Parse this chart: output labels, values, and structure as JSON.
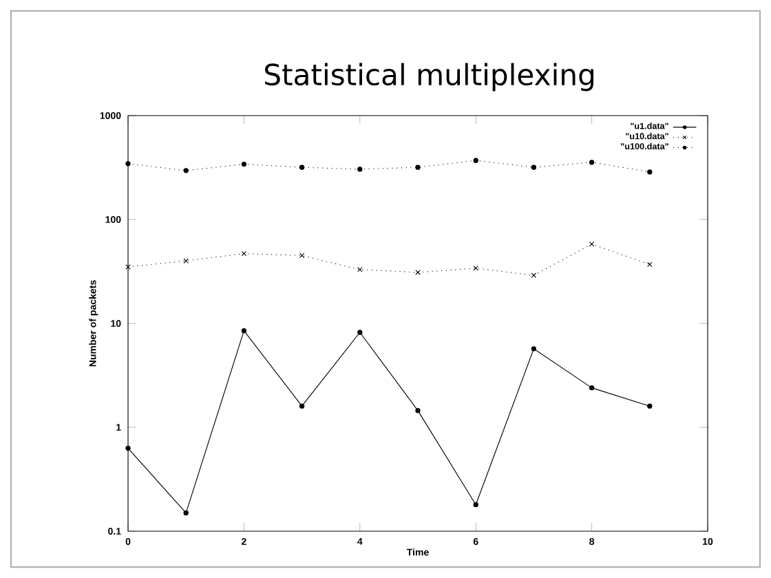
{
  "chart_data": {
    "type": "line",
    "title": "Statistical multiplexing",
    "xlabel": "Time",
    "ylabel": "Number of packets",
    "x": [
      0,
      1,
      2,
      3,
      4,
      5,
      6,
      7,
      8,
      9
    ],
    "series": [
      {
        "name": "\"u1.data\"",
        "color": "#000000",
        "marker": "circle",
        "line_style": "solid",
        "values": [
          0.63,
          0.15,
          8.5,
          1.6,
          8.2,
          1.45,
          0.18,
          5.7,
          2.4,
          1.6
        ]
      },
      {
        "name": "\"u10.data\"",
        "color": "#000000",
        "marker": "cross",
        "line_style": "dotted",
        "values": [
          35,
          40,
          47,
          45,
          33,
          31,
          34,
          29,
          58,
          37
        ]
      },
      {
        "name": "\"u100.data\"",
        "color": "#000000",
        "marker": "circle",
        "line_style": "dotted",
        "values": [
          345,
          296,
          341,
          318,
          305,
          318,
          370,
          318,
          355,
          287
        ]
      }
    ],
    "xlim": [
      0,
      10
    ],
    "ylim": [
      0.1,
      1000
    ],
    "xticks": [
      0,
      2,
      4,
      6,
      8,
      10
    ],
    "yticks": [
      0.1,
      1,
      10,
      100,
      1000
    ],
    "log": "y",
    "grid": false,
    "legend": "top right"
  }
}
